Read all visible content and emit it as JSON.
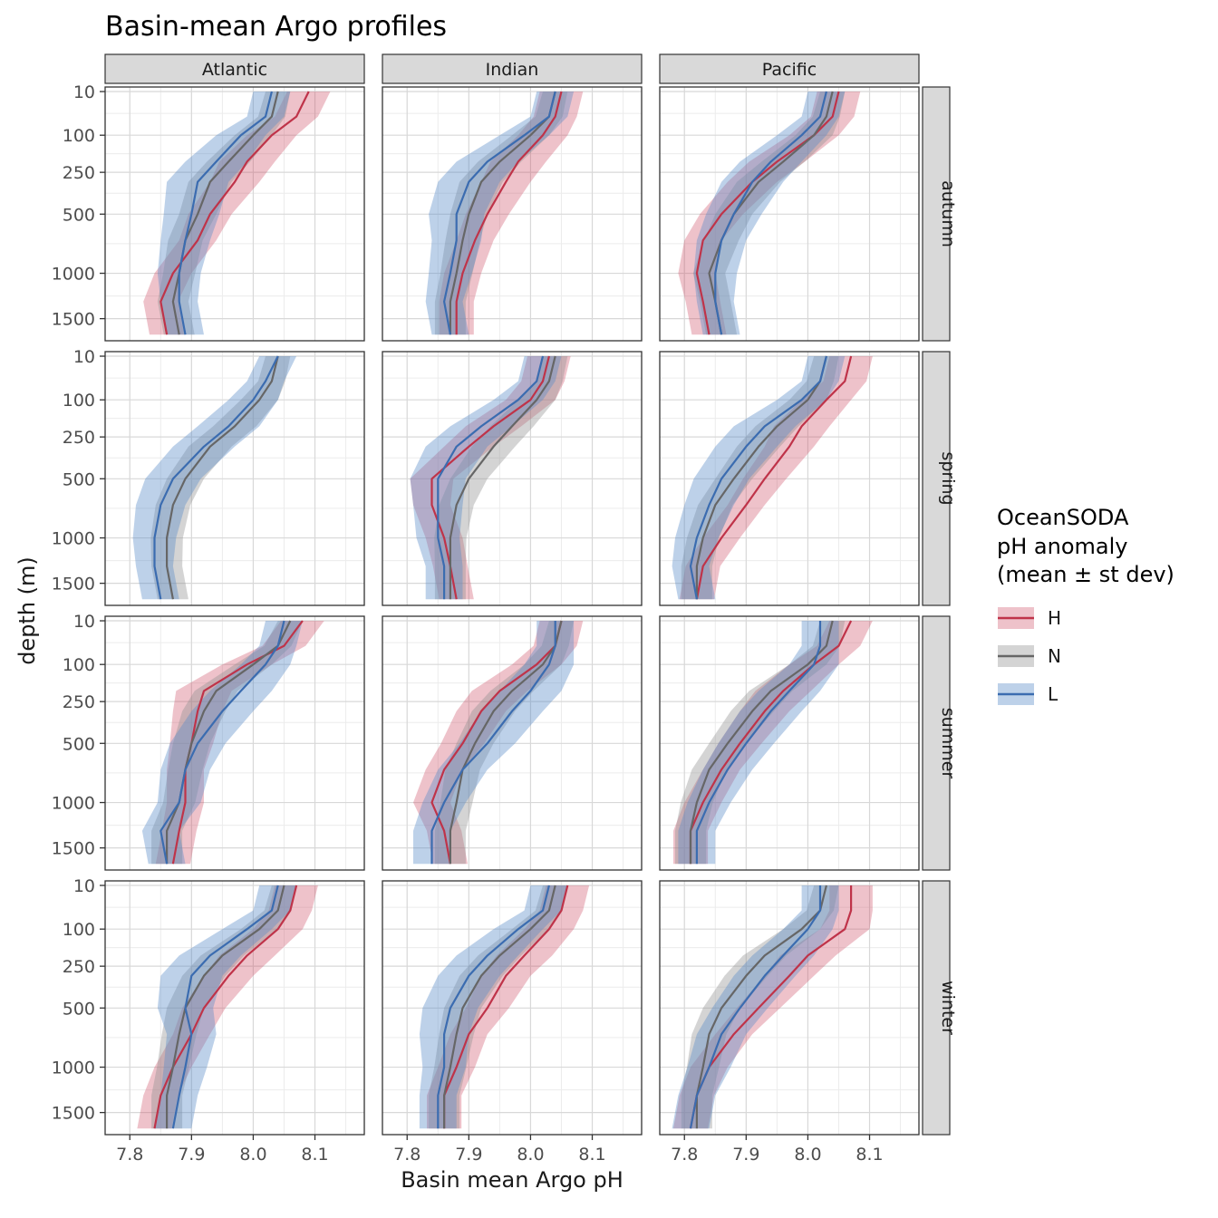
{
  "chart_data": {
    "type": "line",
    "title": "Basin-mean Argo profiles",
    "xlabel": "Basin mean Argo pH",
    "ylabel": "depth (m)",
    "x_ticks": [
      7.8,
      7.9,
      8.0,
      8.1
    ],
    "x_minor": [
      7.85,
      7.95,
      8.05,
      8.15
    ],
    "x_range": [
      7.76,
      8.18
    ],
    "y_ticks": [
      10,
      100,
      250,
      500,
      1000,
      1500
    ],
    "y_range": [
      6,
      1780
    ],
    "y_scale": "sqrt",
    "y_reversed": true,
    "grid": true,
    "col_facets": [
      "Atlantic",
      "Indian",
      "Pacific"
    ],
    "row_facets": [
      "autumn",
      "spring",
      "summer",
      "winter"
    ],
    "depths": [
      10,
      50,
      100,
      200,
      300,
      500,
      700,
      1000,
      1300,
      1700
    ],
    "series_meta": [
      {
        "key": "H",
        "label": "H",
        "color": "#bf3349",
        "fill": "#cf5066",
        "fill_opacity": 0.35,
        "sd": [
          0.035,
          0.035,
          0.04,
          0.045,
          0.04,
          0.035,
          0.03,
          0.03,
          0.028,
          0.028
        ]
      },
      {
        "key": "N",
        "label": "N",
        "color": "#666666",
        "fill": "#8f8f8f",
        "fill_opacity": 0.38,
        "sd": [
          0.02,
          0.022,
          0.03,
          0.035,
          0.035,
          0.03,
          0.028,
          0.026,
          0.025,
          0.025
        ]
      },
      {
        "key": "L",
        "label": "L",
        "color": "#3b6cb0",
        "fill": "#5b8cc8",
        "fill_opacity": 0.4,
        "sd": [
          0.03,
          0.03,
          0.04,
          0.05,
          0.05,
          0.045,
          0.04,
          0.035,
          0.03,
          0.03
        ]
      }
    ],
    "legend": {
      "title_lines": [
        "OceanSODA",
        "pH anomaly",
        "(mean ± st dev)"
      ],
      "items": [
        "H",
        "N",
        "L"
      ],
      "position": "right"
    },
    "panels": [
      {
        "col": "Atlantic",
        "row": "autumn",
        "H": [
          8.09,
          8.07,
          8.03,
          7.99,
          7.97,
          7.93,
          7.91,
          7.87,
          7.85,
          7.86
        ],
        "N": [
          8.04,
          8.03,
          8.0,
          7.96,
          7.93,
          7.91,
          7.89,
          7.88,
          7.87,
          7.88
        ],
        "L": [
          8.03,
          8.02,
          7.98,
          7.94,
          7.91,
          7.9,
          7.89,
          7.88,
          7.88,
          7.89
        ]
      },
      {
        "col": "Indian",
        "row": "autumn",
        "H": [
          8.05,
          8.04,
          8.02,
          7.98,
          7.96,
          7.93,
          7.91,
          7.89,
          7.88,
          7.88
        ],
        "N": [
          8.04,
          8.03,
          8.0,
          7.95,
          7.92,
          7.9,
          7.89,
          7.88,
          7.87,
          7.87
        ],
        "L": [
          8.04,
          8.03,
          7.99,
          7.93,
          7.9,
          7.88,
          7.88,
          7.87,
          7.86,
          7.87
        ]
      },
      {
        "col": "Pacific",
        "row": "autumn",
        "H": [
          8.05,
          8.04,
          8.01,
          7.95,
          7.91,
          7.86,
          7.83,
          7.82,
          7.83,
          7.84
        ],
        "N": [
          8.04,
          8.03,
          8.01,
          7.96,
          7.92,
          7.88,
          7.86,
          7.84,
          7.85,
          7.86
        ],
        "L": [
          8.03,
          8.02,
          7.99,
          7.94,
          7.91,
          7.88,
          7.86,
          7.85,
          7.85,
          7.86
        ]
      },
      {
        "col": "Atlantic",
        "row": "spring",
        "H": null,
        "N": [
          8.04,
          8.03,
          8.01,
          7.97,
          7.93,
          7.89,
          7.87,
          7.86,
          7.86,
          7.87
        ],
        "L": [
          8.04,
          8.02,
          8.0,
          7.96,
          7.92,
          7.87,
          7.85,
          7.84,
          7.84,
          7.85
        ]
      },
      {
        "col": "Indian",
        "row": "spring",
        "H": [
          8.03,
          8.02,
          8.0,
          7.94,
          7.9,
          7.84,
          7.84,
          7.86,
          7.87,
          7.88
        ],
        "N": [
          8.04,
          8.03,
          8.01,
          7.97,
          7.94,
          7.9,
          7.88,
          7.87,
          7.87,
          7.87
        ],
        "L": [
          8.02,
          8.01,
          7.98,
          7.92,
          7.88,
          7.85,
          7.85,
          7.85,
          7.86,
          7.86
        ]
      },
      {
        "col": "Pacific",
        "row": "spring",
        "H": [
          8.07,
          8.06,
          8.03,
          7.99,
          7.97,
          7.93,
          7.9,
          7.86,
          7.83,
          7.82
        ],
        "N": [
          8.03,
          8.02,
          8.0,
          7.95,
          7.92,
          7.88,
          7.85,
          7.83,
          7.82,
          7.82
        ],
        "L": [
          8.03,
          8.02,
          7.99,
          7.93,
          7.9,
          7.86,
          7.84,
          7.82,
          7.81,
          7.82
        ]
      },
      {
        "col": "Atlantic",
        "row": "summer",
        "H": [
          8.08,
          8.05,
          7.99,
          7.92,
          7.91,
          7.9,
          7.89,
          7.89,
          7.88,
          7.87
        ],
        "N": [
          8.06,
          8.04,
          8.0,
          7.94,
          7.92,
          7.9,
          7.89,
          7.88,
          7.86,
          7.86
        ],
        "L": [
          8.05,
          8.04,
          8.02,
          7.98,
          7.95,
          7.91,
          7.89,
          7.88,
          7.85,
          7.86
        ]
      },
      {
        "col": "Indian",
        "row": "summer",
        "H": [
          8.05,
          8.04,
          8.01,
          7.95,
          7.92,
          7.89,
          7.86,
          7.84,
          7.86,
          7.87
        ],
        "N": [
          8.05,
          8.04,
          8.02,
          7.97,
          7.94,
          7.91,
          7.89,
          7.88,
          7.87,
          7.87
        ],
        "L": [
          8.04,
          8.04,
          8.03,
          8.0,
          7.97,
          7.93,
          7.89,
          7.86,
          7.84,
          7.84
        ]
      },
      {
        "col": "Pacific",
        "row": "summer",
        "H": [
          8.07,
          8.05,
          8.01,
          7.96,
          7.93,
          7.89,
          7.86,
          7.83,
          7.81,
          7.81
        ],
        "N": [
          8.04,
          8.03,
          8.0,
          7.94,
          7.91,
          7.87,
          7.84,
          7.82,
          7.81,
          7.81
        ],
        "L": [
          8.02,
          8.02,
          8.01,
          7.97,
          7.94,
          7.9,
          7.87,
          7.84,
          7.82,
          7.82
        ]
      },
      {
        "col": "Atlantic",
        "row": "winter",
        "H": [
          8.07,
          8.06,
          8.04,
          7.99,
          7.96,
          7.92,
          7.9,
          7.87,
          7.85,
          7.84
        ],
        "N": [
          8.05,
          8.04,
          8.01,
          7.95,
          7.92,
          7.89,
          7.88,
          7.87,
          7.86,
          7.86
        ],
        "L": [
          8.04,
          8.03,
          7.99,
          7.93,
          7.9,
          7.89,
          7.9,
          7.89,
          7.88,
          7.87
        ]
      },
      {
        "col": "Indian",
        "row": "winter",
        "H": [
          8.06,
          8.05,
          8.03,
          7.99,
          7.96,
          7.93,
          7.9,
          7.88,
          7.86,
          7.86
        ],
        "N": [
          8.04,
          8.03,
          8.0,
          7.95,
          7.92,
          7.89,
          7.88,
          7.87,
          7.86,
          7.86
        ],
        "L": [
          8.03,
          8.02,
          7.98,
          7.93,
          7.9,
          7.87,
          7.86,
          7.86,
          7.85,
          7.85
        ]
      },
      {
        "col": "Pacific",
        "row": "winter",
        "H": [
          8.07,
          8.07,
          8.06,
          8.0,
          7.97,
          7.92,
          7.88,
          7.84,
          7.82,
          7.81
        ],
        "N": [
          8.03,
          8.02,
          7.99,
          7.93,
          7.9,
          7.86,
          7.84,
          7.83,
          7.82,
          7.82
        ],
        "L": [
          8.02,
          8.02,
          8.0,
          7.96,
          7.93,
          7.89,
          7.86,
          7.84,
          7.82,
          7.81
        ]
      }
    ],
    "style": {
      "strip_fill": "#d9d9d9",
      "strip_border": "#333333",
      "panel_border": "#333333",
      "grid_major": "#d8d8d8",
      "grid_minor": "#ececec",
      "tick_color": "#333333",
      "tick_label_color": "#4d4d4d"
    }
  }
}
